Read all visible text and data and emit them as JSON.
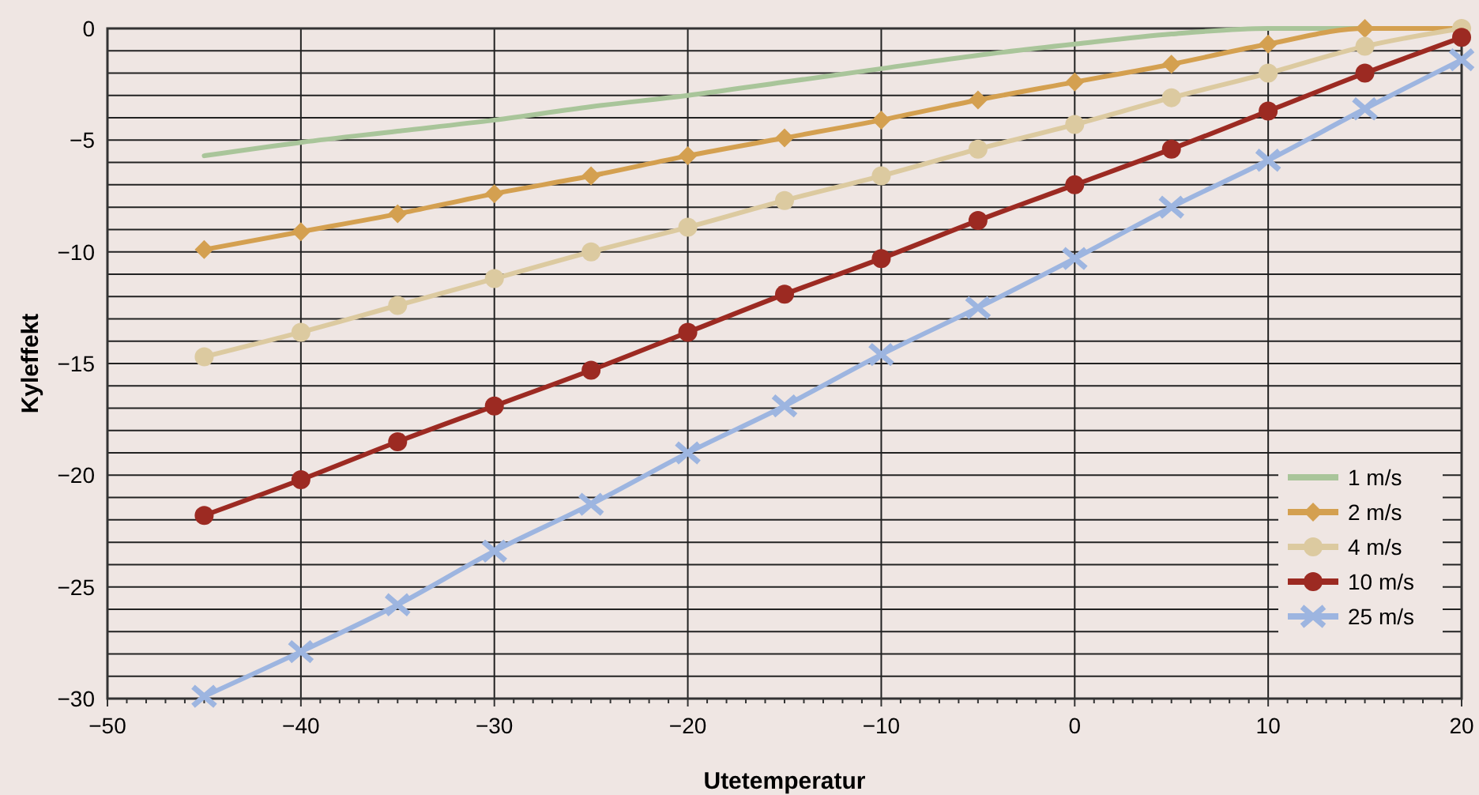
{
  "chart_data": {
    "type": "line",
    "xlabel": "Utetemperatur",
    "ylabel": "Kyleffekt",
    "x": [
      -45,
      -40,
      -35,
      -30,
      -25,
      -20,
      -15,
      -10,
      -5,
      0,
      5,
      10,
      15,
      20
    ],
    "series": [
      {
        "name": "1 m/s",
        "color": "#a9c59a",
        "marker": "none",
        "values": [
          -5.7,
          -5.1,
          -4.6,
          -4.1,
          -3.5,
          -3.0,
          -2.4,
          -1.8,
          -1.2,
          -0.7,
          -0.25,
          0,
          0,
          0
        ]
      },
      {
        "name": "2 m/s",
        "color": "#d4a050",
        "marker": "diamond",
        "values": [
          -9.9,
          -9.1,
          -8.3,
          -7.4,
          -6.6,
          -5.7,
          -4.9,
          -4.1,
          -3.2,
          -2.4,
          -1.6,
          -0.7,
          0,
          0
        ]
      },
      {
        "name": "4 m/s",
        "color": "#dccaa0",
        "marker": "circle",
        "values": [
          -14.7,
          -13.6,
          -12.4,
          -11.2,
          -10.0,
          -8.9,
          -7.7,
          -6.6,
          -5.4,
          -4.3,
          -3.1,
          -2.0,
          -0.8,
          0
        ]
      },
      {
        "name": "10 m/s",
        "color": "#9c2a22",
        "marker": "circle",
        "values": [
          -21.8,
          -20.2,
          -18.5,
          -16.9,
          -15.3,
          -13.6,
          -11.9,
          -10.3,
          -8.6,
          -7.0,
          -5.4,
          -3.7,
          -2.0,
          -0.4
        ]
      },
      {
        "name": "25 m/s",
        "color": "#9db5e0",
        "marker": "cross",
        "values": [
          -29.9,
          -27.9,
          -25.8,
          -23.4,
          -21.3,
          -19.0,
          -16.9,
          -14.6,
          -12.5,
          -10.3,
          -8.0,
          -5.9,
          -3.6,
          -1.4
        ]
      }
    ],
    "xlim": [
      -50,
      20
    ],
    "xticks": [
      {
        "value": -50,
        "label": "−50"
      },
      {
        "value": -49,
        "label": null
      },
      {
        "value": -48,
        "label": null
      },
      {
        "value": -47,
        "label": null
      },
      {
        "value": -46,
        "label": null
      },
      {
        "value": -45,
        "label": null
      },
      {
        "value": -44,
        "label": null
      },
      {
        "value": -43,
        "label": null
      },
      {
        "value": -42,
        "label": null
      },
      {
        "value": -41,
        "label": null
      },
      {
        "value": -40,
        "label": "−40"
      },
      {
        "value": -39,
        "label": null
      },
      {
        "value": -38,
        "label": null
      },
      {
        "value": -37,
        "label": null
      },
      {
        "value": -36,
        "label": null
      },
      {
        "value": -35,
        "label": null
      },
      {
        "value": -34,
        "label": null
      },
      {
        "value": -33,
        "label": null
      },
      {
        "value": -32,
        "label": null
      },
      {
        "value": -31,
        "label": null
      },
      {
        "value": -30,
        "label": "−30"
      },
      {
        "value": -29,
        "label": null
      },
      {
        "value": -28,
        "label": null
      },
      {
        "value": -27,
        "label": null
      },
      {
        "value": -26,
        "label": null
      },
      {
        "value": -25,
        "label": null
      },
      {
        "value": -24,
        "label": null
      },
      {
        "value": -23,
        "label": null
      },
      {
        "value": -22,
        "label": null
      },
      {
        "value": -21,
        "label": null
      },
      {
        "value": -20,
        "label": "−20"
      },
      {
        "value": -19,
        "label": null
      },
      {
        "value": -18,
        "label": null
      },
      {
        "value": -17,
        "label": null
      },
      {
        "value": -16,
        "label": null
      },
      {
        "value": -15,
        "label": null
      },
      {
        "value": -14,
        "label": null
      },
      {
        "value": -13,
        "label": null
      },
      {
        "value": -12,
        "label": null
      },
      {
        "value": -11,
        "label": null
      },
      {
        "value": -10,
        "label": "−10"
      },
      {
        "value": -9,
        "label": null
      },
      {
        "value": -8,
        "label": null
      },
      {
        "value": -7,
        "label": null
      },
      {
        "value": -6,
        "label": null
      },
      {
        "value": -5,
        "label": null
      },
      {
        "value": -4,
        "label": null
      },
      {
        "value": -3,
        "label": null
      },
      {
        "value": -2,
        "label": null
      },
      {
        "value": -1,
        "label": null
      },
      0,
      {
        "value": 1,
        "label": null
      },
      {
        "value": 2,
        "label": null
      },
      {
        "value": 3,
        "label": null
      },
      {
        "value": 4,
        "label": null
      },
      {
        "value": 5,
        "label": null
      },
      {
        "value": 6,
        "label": null
      },
      {
        "value": 7,
        "label": null
      },
      {
        "value": 8,
        "label": null
      },
      {
        "value": 9,
        "label": null
      },
      10,
      {
        "value": 11,
        "label": null
      },
      {
        "value": 12,
        "label": null
      },
      {
        "value": 13,
        "label": null
      },
      {
        "value": 14,
        "label": null
      },
      {
        "value": 15,
        "label": null
      },
      {
        "value": 16,
        "label": null
      },
      {
        "value": 17,
        "label": null
      },
      {
        "value": 18,
        "label": null
      },
      {
        "value": 19,
        "label": null
      },
      20
    ],
    "ylim": [
      -30,
      0
    ],
    "yticks": [
      0,
      {
        "value": -1,
        "label": null
      },
      {
        "value": -2,
        "label": null
      },
      {
        "value": -3,
        "label": null
      },
      {
        "value": -4,
        "label": null
      },
      {
        "value": -5,
        "label": "−5"
      },
      {
        "value": -6,
        "label": null
      },
      {
        "value": -7,
        "label": null
      },
      {
        "value": -8,
        "label": null
      },
      {
        "value": -9,
        "label": null
      },
      {
        "value": -10,
        "label": "−10"
      },
      {
        "value": -11,
        "label": null
      },
      {
        "value": -12,
        "label": null
      },
      {
        "value": -13,
        "label": null
      },
      {
        "value": -14,
        "label": null
      },
      {
        "value": -15,
        "label": "−15"
      },
      {
        "value": -16,
        "label": null
      },
      {
        "value": -17,
        "label": null
      },
      {
        "value": -18,
        "label": null
      },
      {
        "value": -19,
        "label": null
      },
      {
        "value": -20,
        "label": "−20"
      },
      {
        "value": -21,
        "label": null
      },
      {
        "value": -22,
        "label": null
      },
      {
        "value": -23,
        "label": null
      },
      {
        "value": -24,
        "label": null
      },
      {
        "value": -25,
        "label": "−25"
      },
      {
        "value": -26,
        "label": null
      },
      {
        "value": -27,
        "label": null
      },
      {
        "value": -28,
        "label": null
      },
      {
        "value": -29,
        "label": null
      },
      {
        "value": -30,
        "label": "−30"
      }
    ],
    "grid": true,
    "legend": "bottom right"
  }
}
